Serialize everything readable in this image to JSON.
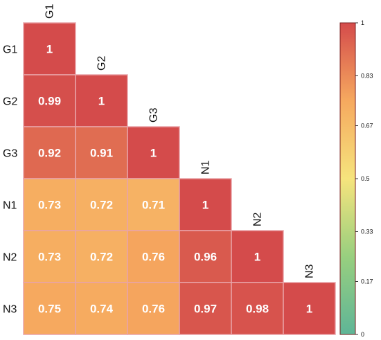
{
  "chart_data": {
    "type": "heatmap",
    "layout": "lower-triangle",
    "labels": [
      "G1",
      "G2",
      "G3",
      "N1",
      "N2",
      "N3"
    ],
    "matrix": [
      [
        1
      ],
      [
        0.99,
        1
      ],
      [
        0.92,
        0.91,
        1
      ],
      [
        0.73,
        0.72,
        0.71,
        1
      ],
      [
        0.73,
        0.72,
        0.76,
        0.96,
        1
      ],
      [
        0.75,
        0.74,
        0.76,
        0.97,
        0.98,
        1
      ]
    ],
    "display": [
      [
        "1"
      ],
      [
        "0.99",
        "1"
      ],
      [
        "0.92",
        "0.91",
        "1"
      ],
      [
        "0.73",
        "0.72",
        "0.71",
        "1"
      ],
      [
        "0.73",
        "0.72",
        "0.76",
        "0.96",
        "1"
      ],
      [
        "0.75",
        "0.74",
        "0.76",
        "0.97",
        "0.98",
        "1"
      ]
    ],
    "colorbar": {
      "min": 0,
      "max": 1,
      "ticks": [
        0,
        0.17,
        0.33,
        0.5,
        0.67,
        0.83,
        1
      ],
      "tick_labels": [
        "0",
        "0.17",
        "0.33",
        "0.5",
        "0.67",
        "0.83",
        "1"
      ],
      "colors": [
        "#5fb597",
        "#98cf7f",
        "#f6e47d",
        "#f6a95f",
        "#d44b4b"
      ]
    },
    "cell_border_color": "#e9a3a8"
  }
}
